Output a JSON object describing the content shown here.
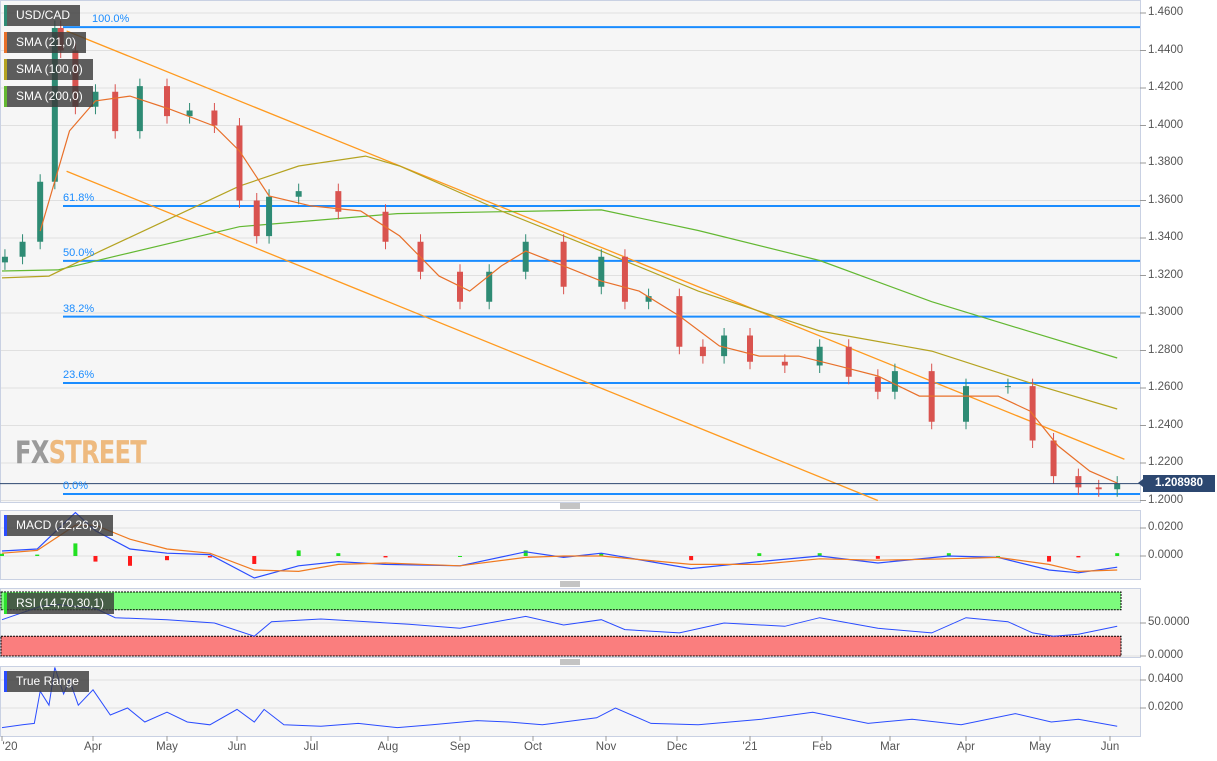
{
  "colors": {
    "up": "#2e8b74",
    "down": "#d9534f",
    "sma21": "#e8702a",
    "sma100": "#b5a321",
    "sma200": "#63b832",
    "trend": "#ff9a1f",
    "fib": "#1a8cff",
    "macd": "#2a4cff",
    "signal": "#f07a20",
    "hist_pos": "#22e022",
    "hist_neg": "#ff1a1a",
    "rsi": "#2a4cff",
    "rsi_ob": "#7dfb7d",
    "rsi_os": "#fa7e7e",
    "tr": "#2a4cff",
    "price_tag": "#2c4770"
  },
  "legend": {
    "symbol": "USD/CAD",
    "sma21": "SMA (21,0)",
    "sma100": "SMA (100,0)",
    "sma200": "SMA (200,0)",
    "macd": "MACD (12,26,9)",
    "rsi": "RSI (14,70,30,1)",
    "tr": "True Range"
  },
  "logo": {
    "fx": "FX",
    "street": "STREET"
  },
  "chart_data": [
    {
      "type": "candlestick",
      "title": "USD/CAD",
      "ylim": [
        1.2,
        1.46
      ],
      "y_ticks": [
        "1.4600",
        "1.4400",
        "1.4200",
        "1.4000",
        "1.3800",
        "1.3600",
        "1.3400",
        "1.3200",
        "1.3000",
        "1.2800",
        "1.2600",
        "1.2400",
        "1.2200",
        "1.2000"
      ],
      "x_ticks": [
        "'20",
        "Apr",
        "May",
        "Jun",
        "Jul",
        "Aug",
        "Sep",
        "Oct",
        "Nov",
        "Dec",
        "'21",
        "Feb",
        "Mar",
        "Apr",
        "May",
        "Jun"
      ],
      "last_price": "1.208980",
      "last_price_value": 1.20898,
      "close": [
        [
          "2020-03-02",
          1.33
        ],
        [
          "2020-03-08",
          1.338
        ],
        [
          "2020-03-14",
          1.37
        ],
        [
          "2020-03-19",
          1.452
        ],
        [
          "2020-03-21",
          1.44
        ],
        [
          "2020-03-26",
          1.41
        ],
        [
          "2020-04-02",
          1.418
        ],
        [
          "2020-04-10",
          1.397
        ],
        [
          "2020-04-20",
          1.421
        ],
        [
          "2020-05-01",
          1.405
        ],
        [
          "2020-05-11",
          1.408
        ],
        [
          "2020-05-22",
          1.4
        ],
        [
          "2020-06-02",
          1.36
        ],
        [
          "2020-06-09",
          1.341
        ],
        [
          "2020-06-14",
          1.362
        ],
        [
          "2020-06-26",
          1.365
        ],
        [
          "2020-07-12",
          1.354
        ],
        [
          "2020-07-31",
          1.338
        ],
        [
          "2020-08-15",
          1.322
        ],
        [
          "2020-09-01",
          1.306
        ],
        [
          "2020-09-13",
          1.322
        ],
        [
          "2020-09-28",
          1.338
        ],
        [
          "2020-10-14",
          1.314
        ],
        [
          "2020-10-30",
          1.33
        ],
        [
          "2020-11-09",
          1.306
        ],
        [
          "2020-11-19",
          1.309
        ],
        [
          "2020-12-02",
          1.282
        ],
        [
          "2020-12-12",
          1.277
        ],
        [
          "2020-12-21",
          1.288
        ],
        [
          "2021-01-01",
          1.274
        ],
        [
          "2021-01-16",
          1.272
        ],
        [
          "2021-01-31",
          1.282
        ],
        [
          "2021-02-12",
          1.266
        ],
        [
          "2021-02-24",
          1.258
        ],
        [
          "2021-03-03",
          1.269
        ],
        [
          "2021-03-18",
          1.242
        ],
        [
          "2021-04-01",
          1.261
        ],
        [
          "2021-04-18",
          1.261
        ],
        [
          "2021-04-28",
          1.232
        ],
        [
          "2021-05-07",
          1.213
        ],
        [
          "2021-05-18",
          1.207
        ],
        [
          "2021-05-27",
          1.206
        ],
        [
          "2021-06-04",
          1.209
        ]
      ],
      "sma21": [
        [
          "2020-03-14",
          1.3437
        ],
        [
          "2020-03-24",
          1.3971
        ],
        [
          "2020-04-02",
          1.4131
        ],
        [
          "2020-04-16",
          1.4157
        ],
        [
          "2020-05-02",
          1.4088
        ],
        [
          "2020-05-22",
          1.3997
        ],
        [
          "2020-06-02",
          1.3864
        ],
        [
          "2020-06-14",
          1.3624
        ],
        [
          "2020-07-01",
          1.3571
        ],
        [
          "2020-07-21",
          1.3544
        ],
        [
          "2020-08-06",
          1.3411
        ],
        [
          "2020-08-23",
          1.3197
        ],
        [
          "2020-09-05",
          1.3117
        ],
        [
          "2020-09-18",
          1.3251
        ],
        [
          "2020-09-28",
          1.333
        ],
        [
          "2020-10-14",
          1.3251
        ],
        [
          "2020-10-30",
          1.317
        ],
        [
          "2020-11-15",
          1.3117
        ],
        [
          "2020-12-02",
          1.2984
        ],
        [
          "2020-12-19",
          1.2824
        ],
        [
          "2021-01-05",
          1.277
        ],
        [
          "2021-01-22",
          1.277
        ],
        [
          "2021-02-08",
          1.2717
        ],
        [
          "2021-02-24",
          1.2664
        ],
        [
          "2021-03-13",
          1.2557
        ],
        [
          "2021-03-30",
          1.2557
        ],
        [
          "2021-04-14",
          1.2557
        ],
        [
          "2021-04-27",
          1.2477
        ],
        [
          "2021-05-09",
          1.2291
        ],
        [
          "2021-05-23",
          1.2157
        ],
        [
          "2021-06-04",
          1.2093
        ]
      ],
      "sma100": [
        [
          "2020-03-01",
          1.3187
        ],
        [
          "2020-03-17",
          1.3197
        ],
        [
          "2020-04-04",
          1.333
        ],
        [
          "2020-06-02",
          1.3677
        ],
        [
          "2020-06-26",
          1.3784
        ],
        [
          "2020-07-23",
          1.3837
        ],
        [
          "2020-08-06",
          1.3784
        ],
        [
          "2020-09-18",
          1.3544
        ],
        [
          "2020-10-30",
          1.333
        ],
        [
          "2020-12-10",
          1.3117
        ],
        [
          "2021-01-31",
          1.2904
        ],
        [
          "2021-03-18",
          1.2797
        ],
        [
          "2021-05-01",
          1.261
        ],
        [
          "2021-06-04",
          1.2488
        ]
      ],
      "sma200": [
        [
          "2020-03-01",
          1.3224
        ],
        [
          "2020-03-20",
          1.323
        ],
        [
          "2020-06-02",
          1.346
        ],
        [
          "2020-08-05",
          1.353
        ],
        [
          "2020-10-30",
          1.355
        ],
        [
          "2020-12-10",
          1.344
        ],
        [
          "2021-01-31",
          1.328
        ],
        [
          "2021-03-18",
          1.306
        ],
        [
          "2021-04-27",
          1.29
        ],
        [
          "2021-06-04",
          1.276
        ]
      ],
      "trendlines": [
        {
          "from": [
            "2020-03-23",
            1.4504
          ],
          "to": [
            "2021-06-07",
            1.222
          ]
        },
        {
          "from": [
            "2020-03-23",
            1.3756
          ],
          "to": [
            "2021-02-24",
            1.2
          ]
        }
      ],
      "fibonacci": [
        {
          "label": "100.0%",
          "value": 1.4525
        },
        {
          "label": "61.8%",
          "value": 1.3571
        },
        {
          "label": "50.0%",
          "value": 1.3278
        },
        {
          "label": "38.2%",
          "value": 1.2981
        },
        {
          "label": "23.6%",
          "value": 1.2627
        },
        {
          "label": "0.0%",
          "value": 1.2035
        }
      ]
    },
    {
      "type": "line",
      "title": "MACD (12,26,9)",
      "ylim": [
        -0.02,
        0.035
      ],
      "y_ticks": [
        "0.0200",
        "0.0000"
      ],
      "macd": [
        [
          "2020-03-01",
          0.0036
        ],
        [
          "2020-03-13",
          0.005
        ],
        [
          "2020-03-26",
          0.031
        ],
        [
          "2020-04-02",
          0.018
        ],
        [
          "2020-04-16",
          0.005
        ],
        [
          "2020-05-01",
          0.002
        ],
        [
          "2020-05-20",
          0.001
        ],
        [
          "2020-06-08",
          -0.0157
        ],
        [
          "2020-06-26",
          -0.007
        ],
        [
          "2020-07-12",
          -0.004
        ],
        [
          "2020-07-31",
          -0.006
        ],
        [
          "2020-09-01",
          -0.007
        ],
        [
          "2020-09-28",
          0.003
        ],
        [
          "2020-10-14",
          -0.001
        ],
        [
          "2020-10-30",
          0.002
        ],
        [
          "2020-12-07",
          -0.009
        ],
        [
          "2021-01-05",
          -0.004
        ],
        [
          "2021-01-31",
          0.0
        ],
        [
          "2021-02-24",
          -0.005
        ],
        [
          "2021-03-25",
          0.0
        ],
        [
          "2021-04-14",
          -0.001
        ],
        [
          "2021-05-05",
          -0.01
        ],
        [
          "2021-05-18",
          -0.012
        ],
        [
          "2021-06-04",
          -0.008
        ]
      ],
      "signal": [
        [
          "2020-03-01",
          0.002
        ],
        [
          "2020-03-13",
          0.004
        ],
        [
          "2020-03-26",
          0.022
        ],
        [
          "2020-04-02",
          0.022
        ],
        [
          "2020-04-16",
          0.012
        ],
        [
          "2020-05-01",
          0.005
        ],
        [
          "2020-05-20",
          0.002
        ],
        [
          "2020-06-08",
          -0.01
        ],
        [
          "2020-06-26",
          -0.011
        ],
        [
          "2020-07-12",
          -0.006
        ],
        [
          "2020-07-31",
          -0.005
        ],
        [
          "2020-09-01",
          -0.007
        ],
        [
          "2020-09-28",
          -0.001
        ],
        [
          "2020-10-14",
          0.0
        ],
        [
          "2020-10-30",
          0.0
        ],
        [
          "2020-12-07",
          -0.006
        ],
        [
          "2021-01-05",
          -0.006
        ],
        [
          "2021-01-31",
          -0.002
        ],
        [
          "2021-02-24",
          -0.003
        ],
        [
          "2021-03-25",
          -0.002
        ],
        [
          "2021-04-14",
          -0.001
        ],
        [
          "2021-05-05",
          -0.006
        ],
        [
          "2021-05-18",
          -0.011
        ],
        [
          "2021-06-04",
          -0.01
        ]
      ]
    },
    {
      "type": "line",
      "title": "RSI (14,70,30,1)",
      "ylim": [
        0,
        100
      ],
      "y_ticks": [
        "50.0000",
        "0.0000"
      ],
      "overbought": 70,
      "oversold": 30,
      "rsi": [
        [
          "2020-03-01",
          55
        ],
        [
          "2020-03-14",
          75
        ],
        [
          "2020-03-20",
          78
        ],
        [
          "2020-04-02",
          72
        ],
        [
          "2020-04-10",
          58
        ],
        [
          "2020-05-01",
          55
        ],
        [
          "2020-05-22",
          50
        ],
        [
          "2020-06-08",
          30
        ],
        [
          "2020-06-15",
          52
        ],
        [
          "2020-07-05",
          56
        ],
        [
          "2020-08-10",
          48
        ],
        [
          "2020-09-01",
          42
        ],
        [
          "2020-09-28",
          60
        ],
        [
          "2020-10-14",
          47
        ],
        [
          "2020-10-30",
          55
        ],
        [
          "2020-11-09",
          40
        ],
        [
          "2020-12-02",
          35
        ],
        [
          "2020-12-21",
          50
        ],
        [
          "2021-01-16",
          45
        ],
        [
          "2021-01-31",
          58
        ],
        [
          "2021-02-24",
          42
        ],
        [
          "2021-03-18",
          35
        ],
        [
          "2021-04-01",
          58
        ],
        [
          "2021-04-18",
          52
        ],
        [
          "2021-04-28",
          35
        ],
        [
          "2021-05-07",
          30
        ],
        [
          "2021-05-18",
          33
        ],
        [
          "2021-06-04",
          45
        ]
      ]
    },
    {
      "type": "line",
      "title": "True Range",
      "ylim": [
        0,
        0.05
      ],
      "y_ticks": [
        "0.0400",
        "0.0200"
      ],
      "tr": [
        [
          "2020-03-01",
          0.006
        ],
        [
          "2020-03-08",
          0.008
        ],
        [
          "2020-03-12",
          0.009
        ],
        [
          "2020-03-14",
          0.032
        ],
        [
          "2020-03-17",
          0.022
        ],
        [
          "2020-03-19",
          0.049
        ],
        [
          "2020-03-22",
          0.03
        ],
        [
          "2020-03-24",
          0.04
        ],
        [
          "2020-03-27",
          0.022
        ],
        [
          "2020-04-01",
          0.033
        ],
        [
          "2020-04-08",
          0.015
        ],
        [
          "2020-04-15",
          0.02
        ],
        [
          "2020-04-22",
          0.01
        ],
        [
          "2020-05-01",
          0.017
        ],
        [
          "2020-05-10",
          0.01
        ],
        [
          "2020-05-20",
          0.008
        ],
        [
          "2020-06-01",
          0.019
        ],
        [
          "2020-06-08",
          0.01
        ],
        [
          "2020-06-12",
          0.019
        ],
        [
          "2020-06-20",
          0.008
        ],
        [
          "2020-07-05",
          0.007
        ],
        [
          "2020-07-20",
          0.009
        ],
        [
          "2020-08-05",
          0.006
        ],
        [
          "2020-08-20",
          0.008
        ],
        [
          "2020-09-08",
          0.011
        ],
        [
          "2020-09-21",
          0.01
        ],
        [
          "2020-10-05",
          0.008
        ],
        [
          "2020-10-28",
          0.013
        ],
        [
          "2020-11-05",
          0.02
        ],
        [
          "2020-11-20",
          0.009
        ],
        [
          "2020-12-10",
          0.008
        ],
        [
          "2021-01-06",
          0.012
        ],
        [
          "2021-01-28",
          0.017
        ],
        [
          "2021-02-20",
          0.009
        ],
        [
          "2021-03-10",
          0.012
        ],
        [
          "2021-03-30",
          0.008
        ],
        [
          "2021-04-21",
          0.016
        ],
        [
          "2021-05-06",
          0.01
        ],
        [
          "2021-05-18",
          0.012
        ],
        [
          "2021-06-04",
          0.007
        ]
      ]
    }
  ]
}
